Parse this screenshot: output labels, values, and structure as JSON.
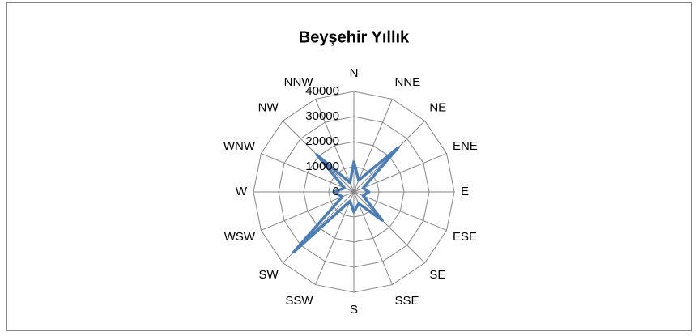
{
  "chart_data": {
    "type": "radar",
    "title": "Beyşehir Yıllık",
    "categories": [
      "N",
      "NNE",
      "NE",
      "ENE",
      "E",
      "ESE",
      "SE",
      "SSE",
      "S",
      "SSW",
      "SW",
      "WSW",
      "W",
      "WNW",
      "NW",
      "NNW"
    ],
    "values": [
      12000,
      5000,
      25000,
      4000,
      6000,
      4000,
      16000,
      5000,
      8000,
      4000,
      34000,
      5000,
      8000,
      4000,
      21000,
      4000
    ],
    "color": "#4a7ebb",
    "rlim": [
      0,
      40000
    ],
    "rticks": [
      0,
      10000,
      20000,
      30000,
      40000
    ],
    "grid": true
  }
}
